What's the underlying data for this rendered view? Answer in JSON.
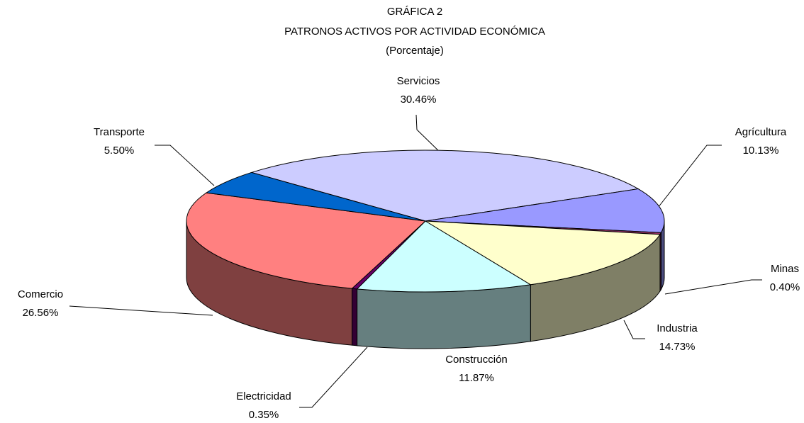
{
  "chart_data": {
    "type": "pie3d",
    "title": "GRÁFICA 2",
    "subtitle": "PATRONOS ACTIVOS POR ACTIVIDAD ECONÓMICA",
    "note": "(Porcentaje)",
    "categories": [
      "Servicios",
      "Agrícultura",
      "Minas",
      "Industria",
      "Construcción",
      "Electricidad",
      "Comercio",
      "Transporte"
    ],
    "values": [
      30.46,
      10.13,
      0.4,
      14.73,
      11.87,
      0.35,
      26.56,
      5.5
    ],
    "value_labels": [
      "30.46%",
      "10.13%",
      "0.40%",
      "14.73%",
      "11.87%",
      "0.35%",
      "26.56%",
      "5.50%"
    ],
    "colors": [
      "#ccccff",
      "#9999ff",
      "#993366",
      "#ffffcc",
      "#ccffff",
      "#660066",
      "#ff8080",
      "#0066cc"
    ]
  }
}
